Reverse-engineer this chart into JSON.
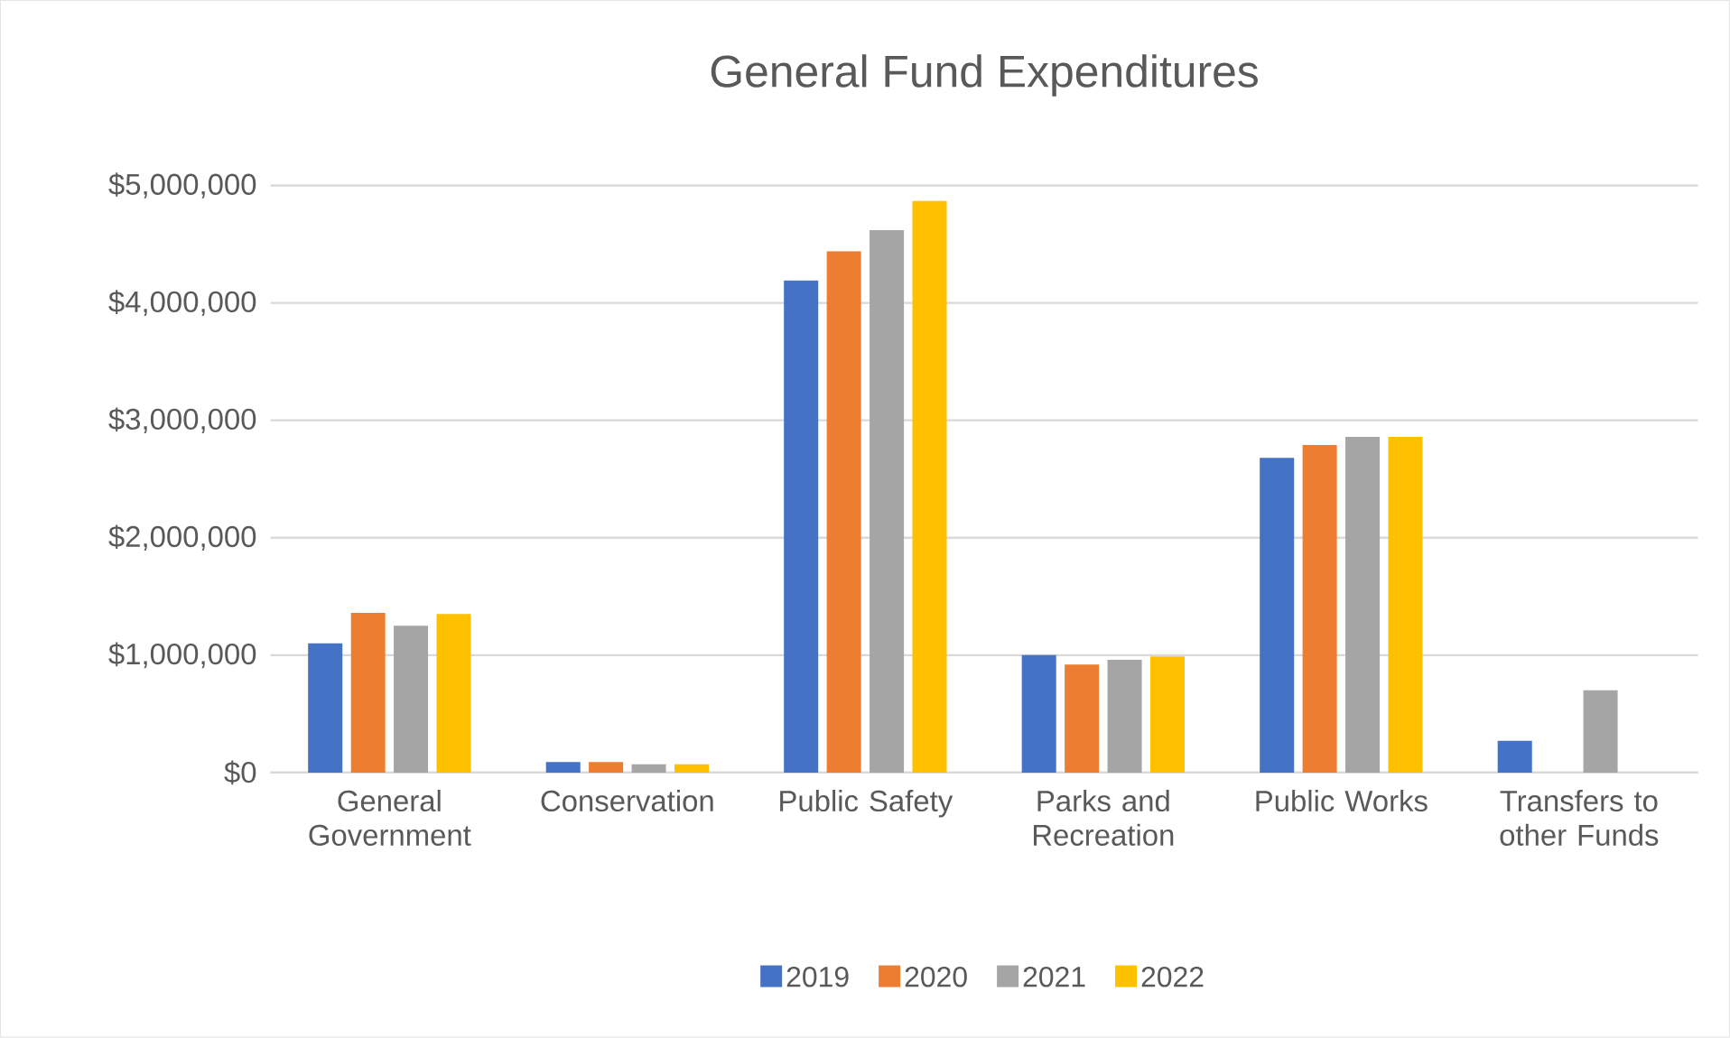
{
  "chart_data": {
    "type": "bar",
    "title": "General Fund Expenditures",
    "categories": [
      "General Government",
      "Conservation",
      "Public Safety",
      "Parks and Recreation",
      "Public Works",
      "Transfers to other Funds"
    ],
    "series": [
      {
        "name": "2019",
        "color": "#4472c4",
        "values": [
          1100000,
          90000,
          4190000,
          1000000,
          2680000,
          270000
        ]
      },
      {
        "name": "2020",
        "color": "#ed7d31",
        "values": [
          1360000,
          90000,
          4440000,
          920000,
          2790000,
          null
        ]
      },
      {
        "name": "2021",
        "color": "#a5a5a5",
        "values": [
          1250000,
          70000,
          4620000,
          960000,
          2860000,
          700000
        ]
      },
      {
        "name": "2022",
        "color": "#ffc000",
        "values": [
          1350000,
          70000,
          4870000,
          990000,
          2860000,
          null
        ]
      }
    ],
    "ylim": [
      0,
      5000000
    ],
    "yticks": [
      {
        "value": 0,
        "label": "$0"
      },
      {
        "value": 1000000,
        "label": "$1,000,000"
      },
      {
        "value": 2000000,
        "label": "$2,000,000"
      },
      {
        "value": 3000000,
        "label": "$3,000,000"
      },
      {
        "value": 4000000,
        "label": "$4,000,000"
      },
      {
        "value": 5000000,
        "label": "$5,000,000"
      }
    ],
    "grid": "y",
    "legend": "bottom"
  }
}
